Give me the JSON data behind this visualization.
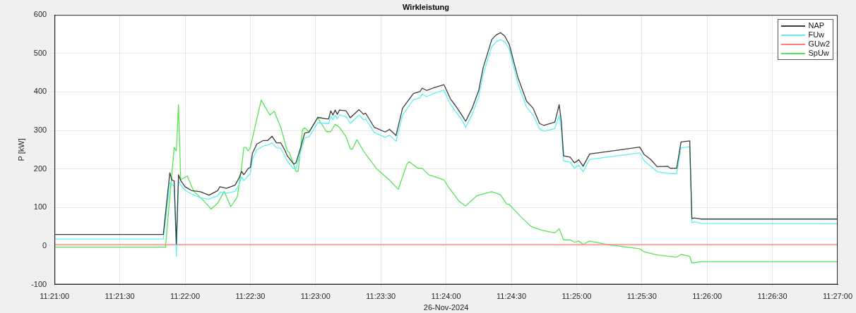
{
  "chart_data": {
    "type": "line",
    "title": "Wirkleistung",
    "xlabel": "26-Nov-2024",
    "ylabel": "P [kW]",
    "xlim": [
      "2024-11-26T11:21:00",
      "2024-11-26T11:27:00"
    ],
    "xticks": [
      {
        "value": "2024-11-26T11:21:00",
        "label": "11:21:00"
      },
      {
        "value": "2024-11-26T11:21:30",
        "label": "11:21:30"
      },
      {
        "value": "2024-11-26T11:22:00",
        "label": "11:22:00"
      },
      {
        "value": "2024-11-26T11:22:30",
        "label": "11:22:30"
      },
      {
        "value": "2024-11-26T11:23:00",
        "label": "11:23:00"
      },
      {
        "value": "2024-11-26T11:23:30",
        "label": "11:23:30"
      },
      {
        "value": "2024-11-26T11:24:00",
        "label": "11:24:00"
      },
      {
        "value": "2024-11-26T11:24:30",
        "label": "11:24:30"
      },
      {
        "value": "2024-11-26T11:25:00",
        "label": "11:25:00"
      },
      {
        "value": "2024-11-26T11:25:30",
        "label": "11:25:30"
      },
      {
        "value": "2024-11-26T11:26:00",
        "label": "11:26:00"
      },
      {
        "value": "2024-11-26T11:26:30",
        "label": "11:26:30"
      },
      {
        "value": "2024-11-26T11:27:00",
        "label": "11:27:00"
      }
    ],
    "ylim": [
      -100,
      600
    ],
    "yticks": [
      -100,
      0,
      100,
      200,
      300,
      400,
      500,
      600
    ],
    "grid": true,
    "legend": "top right",
    "series": [
      {
        "name": "NAP",
        "color": "#3c3c3c",
        "x": [
          "2024-11-26T11:21:00",
          "2024-11-26T11:21:50",
          "2024-11-26T11:21:53",
          "2024-11-26T11:21:54",
          "2024-11-26T11:21:55",
          "2024-11-26T11:21:56",
          "2024-11-26T11:21:57",
          "2024-11-26T11:21:58",
          "2024-11-26T11:22:00",
          "2024-11-26T11:22:03",
          "2024-11-26T11:22:07",
          "2024-11-26T11:22:11",
          "2024-11-26T11:22:15",
          "2024-11-26T11:22:16",
          "2024-11-26T11:22:19",
          "2024-11-26T11:22:23",
          "2024-11-26T11:22:25",
          "2024-11-26T11:22:26",
          "2024-11-26T11:22:27",
          "2024-11-26T11:22:29",
          "2024-11-26T11:22:30",
          "2024-11-26T11:22:31",
          "2024-11-26T11:22:33",
          "2024-11-26T11:22:36",
          "2024-11-26T11:22:38",
          "2024-11-26T11:22:40",
          "2024-11-26T11:22:42",
          "2024-11-26T11:22:44",
          "2024-11-26T11:22:46",
          "2024-11-26T11:22:47",
          "2024-11-26T11:22:50",
          "2024-11-26T11:22:51",
          "2024-11-26T11:22:53",
          "2024-11-26T11:22:55",
          "2024-11-26T11:22:57",
          "2024-11-26T11:22:58",
          "2024-11-26T11:23:01",
          "2024-11-26T11:23:05",
          "2024-11-26T11:23:06",
          "2024-11-26T11:23:07",
          "2024-11-26T11:23:08",
          "2024-11-26T11:23:09",
          "2024-11-26T11:23:10",
          "2024-11-26T11:23:11",
          "2024-11-26T11:23:14",
          "2024-11-26T11:23:16",
          "2024-11-26T11:23:20",
          "2024-11-26T11:23:22",
          "2024-11-26T11:23:23",
          "2024-11-26T11:23:27",
          "2024-11-26T11:23:32",
          "2024-11-26T11:23:34",
          "2024-11-26T11:23:37",
          "2024-11-26T11:23:40",
          "2024-11-26T11:23:45",
          "2024-11-26T11:23:48",
          "2024-11-26T11:23:49",
          "2024-11-26T11:23:51",
          "2024-11-26T11:23:54",
          "2024-11-26T11:23:59",
          "2024-11-26T11:24:02",
          "2024-11-26T11:24:04",
          "2024-11-26T11:24:07",
          "2024-11-26T11:24:09",
          "2024-11-26T11:24:12",
          "2024-11-26T11:24:15",
          "2024-11-26T11:24:17",
          "2024-11-26T11:24:21",
          "2024-11-26T11:24:23",
          "2024-11-26T11:24:25",
          "2024-11-26T11:24:27",
          "2024-11-26T11:24:29",
          "2024-11-26T11:24:33",
          "2024-11-26T11:24:37",
          "2024-11-26T11:24:40",
          "2024-11-26T11:24:43",
          "2024-11-26T11:24:45",
          "2024-11-26T11:24:50",
          "2024-11-26T11:24:52",
          "2024-11-26T11:24:53",
          "2024-11-26T11:24:54",
          "2024-11-26T11:24:57",
          "2024-11-26T11:24:59",
          "2024-11-26T11:25:01",
          "2024-11-26T11:25:03",
          "2024-11-26T11:25:06",
          "2024-11-26T11:25:14",
          "2024-11-26T11:25:29",
          "2024-11-26T11:25:31",
          "2024-11-26T11:25:34",
          "2024-11-26T11:25:37",
          "2024-11-26T11:25:42",
          "2024-11-26T11:25:43",
          "2024-11-26T11:25:46",
          "2024-11-26T11:25:48",
          "2024-11-26T11:25:52",
          "2024-11-26T11:25:53",
          "2024-11-26T11:25:54",
          "2024-11-26T11:25:57",
          "2024-11-26T11:27:00"
        ],
        "values": [
          30,
          30,
          190,
          171,
          169,
          5,
          185,
          170,
          154,
          144,
          141,
          132,
          144,
          154,
          150,
          158,
          179,
          194,
          185,
          201,
          204,
          241,
          265,
          274,
          274,
          285,
          268,
          268,
          247,
          234,
          213,
          216,
          253,
          293,
          296,
          305,
          334,
          330,
          330,
          351,
          340,
          353,
          342,
          353,
          351,
          333,
          354,
          342,
          345,
          308,
          296,
          303,
          287,
          358,
          396,
          401,
          410,
          404,
          410,
          419,
          382,
          367,
          342,
          324,
          358,
          404,
          462,
          536,
          548,
          554,
          545,
          524,
          438,
          376,
          358,
          318,
          313,
          322,
          367,
          322,
          234,
          231,
          216,
          224,
          207,
          239,
          245,
          257,
          238,
          225,
          206,
          207,
          202,
          202,
          270,
          273,
          71,
          73,
          70,
          70
        ]
      },
      {
        "name": "FUw",
        "color": "#5cf2f2",
        "x": [
          "2024-11-26T11:21:00",
          "2024-11-26T11:21:50",
          "2024-11-26T11:21:53",
          "2024-11-26T11:21:54",
          "2024-11-26T11:21:55",
          "2024-11-26T11:21:56",
          "2024-11-26T11:21:57",
          "2024-11-26T11:21:58",
          "2024-11-26T11:22:00",
          "2024-11-26T11:22:03",
          "2024-11-26T11:22:07",
          "2024-11-26T11:22:11",
          "2024-11-26T11:22:15",
          "2024-11-26T11:22:16",
          "2024-11-26T11:22:19",
          "2024-11-26T11:22:23",
          "2024-11-26T11:22:25",
          "2024-11-26T11:22:26",
          "2024-11-26T11:22:27",
          "2024-11-26T11:22:29",
          "2024-11-26T11:22:30",
          "2024-11-26T11:22:31",
          "2024-11-26T11:22:33",
          "2024-11-26T11:22:36",
          "2024-11-26T11:22:38",
          "2024-11-26T11:22:40",
          "2024-11-26T11:22:42",
          "2024-11-26T11:22:44",
          "2024-11-26T11:22:46",
          "2024-11-26T11:22:47",
          "2024-11-26T11:22:50",
          "2024-11-26T11:22:51",
          "2024-11-26T11:22:53",
          "2024-11-26T11:22:55",
          "2024-11-26T11:22:57",
          "2024-11-26T11:22:58",
          "2024-11-26T11:23:01",
          "2024-11-26T11:23:05",
          "2024-11-26T11:23:06",
          "2024-11-26T11:23:07",
          "2024-11-26T11:23:08",
          "2024-11-26T11:23:09",
          "2024-11-26T11:23:10",
          "2024-11-26T11:23:11",
          "2024-11-26T11:23:14",
          "2024-11-26T11:23:16",
          "2024-11-26T11:23:20",
          "2024-11-26T11:23:22",
          "2024-11-26T11:23:23",
          "2024-11-26T11:23:27",
          "2024-11-26T11:23:32",
          "2024-11-26T11:23:34",
          "2024-11-26T11:23:37",
          "2024-11-26T11:23:40",
          "2024-11-26T11:23:45",
          "2024-11-26T11:23:48",
          "2024-11-26T11:23:49",
          "2024-11-26T11:23:51",
          "2024-11-26T11:23:54",
          "2024-11-26T11:23:59",
          "2024-11-26T11:24:02",
          "2024-11-26T11:24:04",
          "2024-11-26T11:24:07",
          "2024-11-26T11:24:09",
          "2024-11-26T11:24:12",
          "2024-11-26T11:24:15",
          "2024-11-26T11:24:17",
          "2024-11-26T11:24:21",
          "2024-11-26T11:24:23",
          "2024-11-26T11:24:25",
          "2024-11-26T11:24:27",
          "2024-11-26T11:24:29",
          "2024-11-26T11:24:33",
          "2024-11-26T11:24:37",
          "2024-11-26T11:24:40",
          "2024-11-26T11:24:43",
          "2024-11-26T11:24:45",
          "2024-11-26T11:24:50",
          "2024-11-26T11:24:52",
          "2024-11-26T11:24:53",
          "2024-11-26T11:24:54",
          "2024-11-26T11:24:57",
          "2024-11-26T11:24:59",
          "2024-11-26T11:25:01",
          "2024-11-26T11:25:03",
          "2024-11-26T11:25:06",
          "2024-11-26T11:25:29",
          "2024-11-26T11:25:31",
          "2024-11-26T11:25:37",
          "2024-11-26T11:25:43",
          "2024-11-26T11:25:46",
          "2024-11-26T11:25:48",
          "2024-11-26T11:25:52",
          "2024-11-26T11:25:53",
          "2024-11-26T11:25:54",
          "2024-11-26T11:25:57",
          "2024-11-26T11:27:00"
        ],
        "values": [
          18,
          18,
          164,
          160,
          155,
          -26,
          170,
          158,
          145,
          135,
          125,
          122,
          130,
          140,
          137,
          142,
          162,
          180,
          170,
          182,
          188,
          225,
          250,
          260,
          262,
          268,
          255,
          254,
          232,
          220,
          200,
          202,
          242,
          280,
          284,
          292,
          320,
          318,
          318,
          337,
          328,
          340,
          330,
          340,
          336,
          318,
          340,
          328,
          330,
          295,
          282,
          288,
          272,
          340,
          380,
          385,
          395,
          388,
          395,
          405,
          368,
          352,
          330,
          308,
          342,
          388,
          445,
          518,
          530,
          536,
          530,
          512,
          422,
          360,
          340,
          304,
          298,
          305,
          340,
          300,
          221,
          218,
          202,
          210,
          193,
          225,
          242,
          222,
          193,
          188,
          188,
          255,
          258,
          60,
          63,
          59,
          58
        ]
      },
      {
        "name": "GUw2",
        "color": "#ff7b7b",
        "x": [
          "2024-11-26T11:21:00",
          "2024-11-26T11:27:00"
        ],
        "values": [
          4,
          4
        ]
      },
      {
        "name": "SpUw",
        "color": "#55e655",
        "x": [
          "2024-11-26T11:21:00",
          "2024-11-26T11:21:51",
          "2024-11-26T11:21:55",
          "2024-11-26T11:21:56",
          "2024-11-26T11:21:57",
          "2024-11-26T11:21:58",
          "2024-11-26T11:22:01",
          "2024-11-26T11:22:04",
          "2024-11-26T11:22:08",
          "2024-11-26T11:22:12",
          "2024-11-26T11:22:15",
          "2024-11-26T11:22:18",
          "2024-11-26T11:22:21",
          "2024-11-26T11:22:24",
          "2024-11-26T11:22:26",
          "2024-11-26T11:22:27",
          "2024-11-26T11:22:28",
          "2024-11-26T11:22:29",
          "2024-11-26T11:22:30",
          "2024-11-26T11:22:35",
          "2024-11-26T11:22:39",
          "2024-11-26T11:22:41",
          "2024-11-26T11:22:44",
          "2024-11-26T11:22:47",
          "2024-11-26T11:22:48",
          "2024-11-26T11:22:51",
          "2024-11-26T11:22:52",
          "2024-11-26T11:22:54",
          "2024-11-26T11:22:55",
          "2024-11-26T11:22:57",
          "2024-11-26T11:23:01",
          "2024-11-26T11:23:05",
          "2024-11-26T11:23:07",
          "2024-11-26T11:23:09",
          "2024-11-26T11:23:11",
          "2024-11-26T11:23:14",
          "2024-11-26T11:23:16",
          "2024-11-26T11:23:17",
          "2024-11-26T11:23:19",
          "2024-11-26T11:23:22",
          "2024-11-26T11:23:28",
          "2024-11-26T11:23:34",
          "2024-11-26T11:23:38",
          "2024-11-26T11:23:42",
          "2024-11-26T11:23:43",
          "2024-11-26T11:23:47",
          "2024-11-26T11:23:49",
          "2024-11-26T11:23:52",
          "2024-11-26T11:23:59",
          "2024-11-26T11:24:01",
          "2024-11-26T11:24:06",
          "2024-11-26T11:24:09",
          "2024-11-26T11:24:14",
          "2024-11-26T11:24:17",
          "2024-11-26T11:24:21",
          "2024-11-26T11:24:25",
          "2024-11-26T11:24:28",
          "2024-11-26T11:24:29",
          "2024-11-26T11:24:34",
          "2024-11-26T11:24:39",
          "2024-11-26T11:24:44",
          "2024-11-26T11:24:50",
          "2024-11-26T11:24:52",
          "2024-11-26T11:24:54",
          "2024-11-26T11:24:57",
          "2024-11-26T11:24:59",
          "2024-11-26T11:25:01",
          "2024-11-26T11:25:03",
          "2024-11-26T11:25:06",
          "2024-11-26T11:25:14",
          "2024-11-26T11:25:29",
          "2024-11-26T11:25:31",
          "2024-11-26T11:25:37",
          "2024-11-26T11:25:46",
          "2024-11-26T11:25:48",
          "2024-11-26T11:25:52",
          "2024-11-26T11:25:53",
          "2024-11-26T11:25:57",
          "2024-11-26T11:27:00"
        ],
        "values": [
          -3,
          -3,
          256,
          247,
          367,
          172,
          182,
          142,
          121,
          96,
          111,
          142,
          102,
          127,
          204,
          256,
          256,
          247,
          256,
          379,
          340,
          350,
          308,
          247,
          242,
          194,
          194,
          302,
          307,
          296,
          333,
          297,
          297,
          316,
          308,
          284,
          252,
          252,
          276,
          247,
          201,
          171,
          147,
          213,
          219,
          202,
          202,
          185,
          172,
          154,
          116,
          104,
          130,
          135,
          141,
          133,
          108,
          108,
          78,
          51,
          41,
          34,
          45,
          16,
          16,
          10,
          13,
          4,
          13,
          4,
          -7,
          -15,
          -23,
          -29,
          -22,
          -27,
          -44,
          -41,
          -41
        ]
      }
    ]
  }
}
